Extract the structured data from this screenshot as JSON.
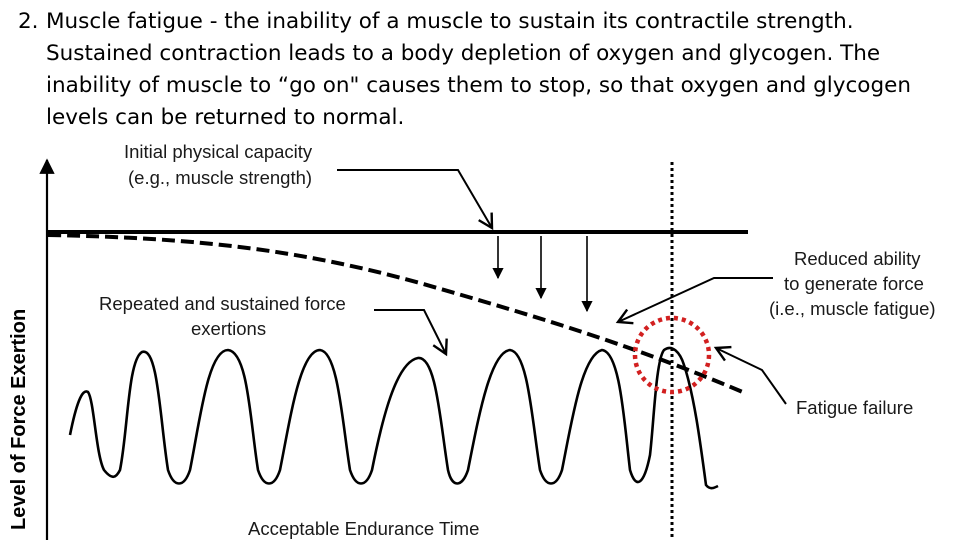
{
  "slide": {
    "number": "2.",
    "text": "Muscle fatigue - the inability of a muscle to sustain its contractile strength. Sustained contraction leads to a body depletion of oxygen and glycogen. The inability of muscle to  “go on\" causes them to stop, so that oxygen and glycogen levels can be returned to normal."
  },
  "diagram": {
    "y_axis_label": "Level of Force Exertion",
    "x_axis_label": "Acceptable Endurance Time",
    "labels": {
      "initial_capacity_line1": "Initial physical capacity",
      "initial_capacity_line2": "(e.g., muscle strength)",
      "reduced_ability_line1": "Reduced ability",
      "reduced_ability_line2": "to generate force",
      "reduced_ability_line3": "(i.e., muscle fatigue)",
      "repeated_line1": "Repeated and sustained force",
      "repeated_line2": "exertions",
      "fatigue_failure": "Fatigue failure"
    },
    "colors": {
      "ink": "#000000",
      "highlight_circle": "#d22020"
    }
  }
}
